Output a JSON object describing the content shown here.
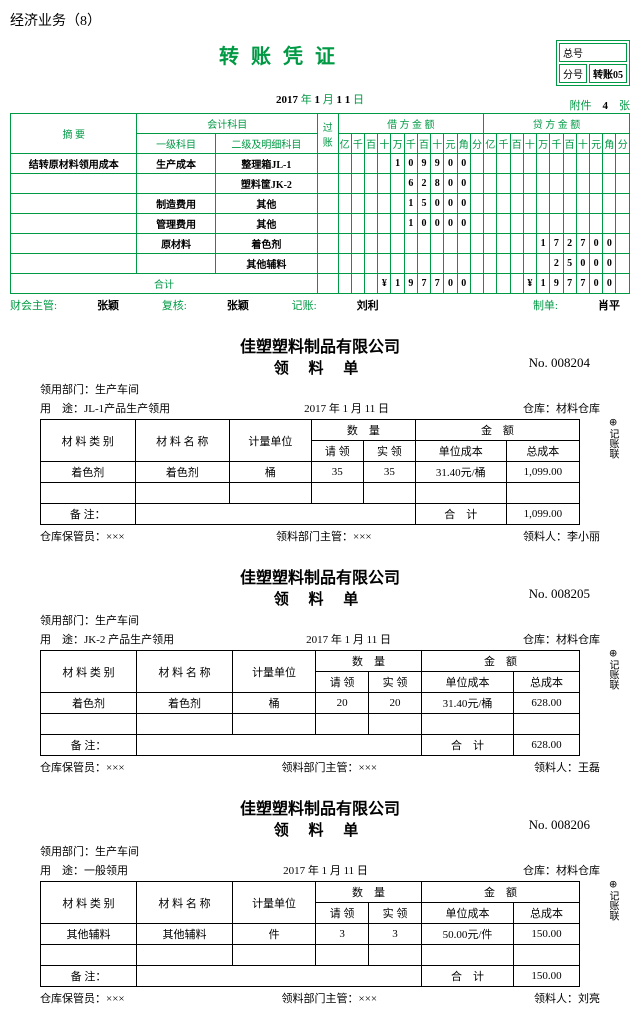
{
  "pageTitle": "经济业务（8）",
  "voucher": {
    "title": "转账凭证",
    "numBox": {
      "r1": "总号",
      "r2a": "分号",
      "r2b": "转账05"
    },
    "year": "2017",
    "yLbl": "年",
    "month": "1",
    "mLbl": "月",
    "day": "1 1",
    "dLbl": "日",
    "attLbl": "附件",
    "attCount": "4",
    "attUnit": "张",
    "h_summary": "摘 要",
    "h_subject": "会计科目",
    "h_sub1": "一级科目",
    "h_sub2": "二级及明细科目",
    "h_pass": "过账",
    "h_debit": "借 方 金 额",
    "h_credit": "贷 方 金 额",
    "digits": [
      "亿",
      "千",
      "百",
      "十",
      "万",
      "千",
      "百",
      "十",
      "元",
      "角",
      "分"
    ],
    "rows": [
      {
        "sum": "结转原材料领用成本",
        "s1": "生产成本",
        "s2": "整理箱JL-1",
        "d": [
          "",
          "",
          "",
          "",
          "1",
          "0",
          "9",
          "9",
          "0",
          "0",
          ""
        ],
        "c": [
          "",
          "",
          "",
          "",
          "",
          "",
          "",
          "",
          "",
          "",
          ""
        ]
      },
      {
        "sum": "",
        "s1": "",
        "s2": "塑料筐JK-2",
        "d": [
          "",
          "",
          "",
          "",
          "",
          "6",
          "2",
          "8",
          "0",
          "0",
          ""
        ],
        "c": [
          "",
          "",
          "",
          "",
          "",
          "",
          "",
          "",
          "",
          "",
          ""
        ]
      },
      {
        "sum": "",
        "s1": "制造费用",
        "s2": "其他",
        "d": [
          "",
          "",
          "",
          "",
          "",
          "1",
          "5",
          "0",
          "0",
          "0",
          ""
        ],
        "c": [
          "",
          "",
          "",
          "",
          "",
          "",
          "",
          "",
          "",
          "",
          ""
        ]
      },
      {
        "sum": "",
        "s1": "管理费用",
        "s2": "其他",
        "d": [
          "",
          "",
          "",
          "",
          "",
          "1",
          "0",
          "0",
          "0",
          "0",
          ""
        ],
        "c": [
          "",
          "",
          "",
          "",
          "",
          "",
          "",
          "",
          "",
          "",
          ""
        ]
      },
      {
        "sum": "",
        "s1": "原材料",
        "s2": "着色剂",
        "d": [
          "",
          "",
          "",
          "",
          "",
          "",
          "",
          "",
          "",
          "",
          ""
        ],
        "c": [
          "",
          "",
          "",
          "",
          "1",
          "7",
          "2",
          "7",
          "0",
          "0",
          ""
        ]
      },
      {
        "sum": "",
        "s1": "",
        "s2": "其他辅料",
        "d": [
          "",
          "",
          "",
          "",
          "",
          "",
          "",
          "",
          "",
          "",
          ""
        ],
        "c": [
          "",
          "",
          "",
          "",
          "",
          "2",
          "5",
          "0",
          "0",
          "0",
          ""
        ]
      }
    ],
    "total": {
      "lbl": "合计",
      "d": [
        "",
        "",
        "",
        "¥",
        "1",
        "9",
        "7",
        "7",
        "0",
        "0",
        ""
      ],
      "c": [
        "",
        "",
        "",
        "¥",
        "1",
        "9",
        "7",
        "7",
        "0",
        "0",
        ""
      ]
    },
    "sign": {
      "a1": "财会主管:",
      "a2": "张颖",
      "b1": "复核:",
      "b2": "张颖",
      "c1": "记账:",
      "c2": "刘利",
      "d1": "制单:",
      "d2": "肖平"
    }
  },
  "slips": [
    {
      "company": "佳塑塑料制品有限公司",
      "title": "领 料 单",
      "noLbl": "No.",
      "no": "008204",
      "dept": "领用部门：生产车间",
      "use": "用　途：JL-1产品生产领用",
      "date": "2017 年 1 月 11 日",
      "wh": "仓库：材料仓库",
      "h": [
        "材 料 类 别",
        "材 料 名 称",
        "计量单位",
        "数　量",
        "金　额"
      ],
      "h2": [
        "请 领",
        "实 领",
        "单位成本",
        "总成本"
      ],
      "rows": [
        [
          "着色剂",
          "着色剂",
          "桶",
          "35",
          "35",
          "31.40元/桶",
          "1,099.00"
        ],
        [
          "",
          "",
          "",
          "",
          "",
          "",
          ""
        ]
      ],
      "noteLbl": "备 注：",
      "totLbl": "合　计",
      "tot": "1,099.00",
      "f1": "仓库保管员：×××",
      "f2": "领料部门主管：×××",
      "f3": "领料人：李小丽",
      "side": "⊕ 记账联"
    },
    {
      "company": "佳塑塑料制品有限公司",
      "title": "领 料 单",
      "noLbl": "No.",
      "no": "008205",
      "dept": "领用部门：生产车间",
      "use": "用　途：JK-2 产品生产领用",
      "date": "2017 年 1 月 11 日",
      "wh": "仓库：材料仓库",
      "h": [
        "材 料 类 别",
        "材 料 名 称",
        "计量单位",
        "数　量",
        "金　额"
      ],
      "h2": [
        "请 领",
        "实 领",
        "单位成本",
        "总成本"
      ],
      "rows": [
        [
          "着色剂",
          "着色剂",
          "桶",
          "20",
          "20",
          "31.40元/桶",
          "628.00"
        ],
        [
          "",
          "",
          "",
          "",
          "",
          "",
          ""
        ]
      ],
      "noteLbl": "备 注：",
      "totLbl": "合　计",
      "tot": "628.00",
      "f1": "仓库保管员：×××",
      "f2": "领料部门主管：×××",
      "f3": "领料人：王磊",
      "side": "⊕ 记账联"
    },
    {
      "company": "佳塑塑料制品有限公司",
      "title": "领 料 单",
      "noLbl": "No.",
      "no": "008206",
      "dept": "领用部门：生产车间",
      "use": "用　途：一般领用",
      "date": "2017 年 1 月 11 日",
      "wh": "仓库：材料仓库",
      "h": [
        "材 料 类 别",
        "材 料 名 称",
        "计量单位",
        "数　量",
        "金　额"
      ],
      "h2": [
        "请 领",
        "实 领",
        "单位成本",
        "总成本"
      ],
      "rows": [
        [
          "其他辅料",
          "其他辅料",
          "件",
          "3",
          "3",
          "50.00元/件",
          "150.00"
        ],
        [
          "",
          "",
          "",
          "",
          "",
          "",
          ""
        ]
      ],
      "noteLbl": "备 注：",
      "totLbl": "合　计",
      "tot": "150.00",
      "f1": "仓库保管员：×××",
      "f2": "领料部门主管：×××",
      "f3": "领料人：刘亮",
      "side": "⊕ 记账联"
    }
  ]
}
